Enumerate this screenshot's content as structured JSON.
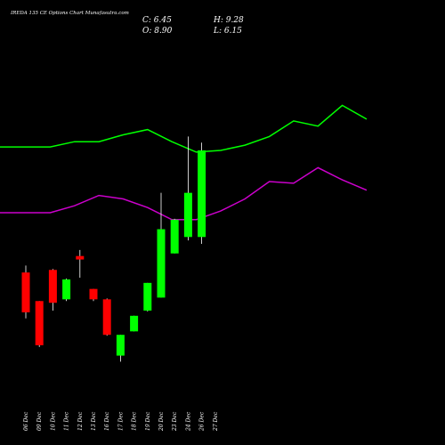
{
  "header": {
    "title": "IREDA 135 CE Options Chart Munafasutra.com",
    "c_label": "C: 6.45",
    "o_label": "O: 8.90",
    "h_label": "H: 9.28",
    "l_label": "L: 6.15"
  },
  "colors": {
    "background": "#000000",
    "up": "#00ff00",
    "down": "#ff0000",
    "upper_line": "#00ff00",
    "lower_line": "#cc00cc",
    "text": "#ffffff"
  },
  "chart_data": {
    "type": "candlestick",
    "categories": [
      "06 Dec",
      "09 Dec",
      "10 Dec",
      "11 Dec",
      "12 Dec",
      "13 Dec",
      "16 Dec",
      "17 Dec",
      "18 Dec",
      "19 Dec",
      "20 Dec",
      "23 Dec",
      "24 Dec",
      "26 Dec",
      "27 Dec"
    ],
    "candles": [
      {
        "open": 11.35,
        "close": 9.05,
        "high": 11.75,
        "low": 8.7
      },
      {
        "open": 9.7,
        "close": 7.15,
        "high": 9.7,
        "low": 7.05
      },
      {
        "open": 11.5,
        "close": 9.6,
        "high": 11.55,
        "low": 9.15
      },
      {
        "open": 9.8,
        "close": 10.95,
        "high": 11.0,
        "low": 9.7
      },
      {
        "open": 12.3,
        "close": 12.1,
        "high": 12.65,
        "low": 11.05
      },
      {
        "open": 10.4,
        "close": 9.8,
        "high": 10.4,
        "low": 9.7
      },
      {
        "open": 9.8,
        "close": 7.75,
        "high": 9.85,
        "low": 7.7
      },
      {
        "open": 6.55,
        "close": 7.75,
        "high": 7.75,
        "low": 6.2
      },
      {
        "open": 7.95,
        "close": 8.85,
        "high": 8.85,
        "low": 7.95
      },
      {
        "open": 9.15,
        "close": 10.75,
        "high": 10.75,
        "low": 9.1
      },
      {
        "open": 9.9,
        "close": 13.85,
        "high": 15.95,
        "low": 9.9
      },
      {
        "open": 12.45,
        "close": 14.4,
        "high": 14.45,
        "low": 12.45
      },
      {
        "open": 13.4,
        "close": 15.95,
        "high": 19.2,
        "low": 13.2
      },
      {
        "open": 13.4,
        "close": 18.4,
        "high": 18.85,
        "low": 13.0
      },
      {
        "open": null,
        "close": null,
        "high": null,
        "low": null
      }
    ],
    "upper_band": [
      18.6,
      18.6,
      18.9,
      18.9,
      19.3,
      19.6,
      18.9,
      18.3,
      18.4,
      18.7,
      19.2,
      20.1,
      19.8,
      21.0,
      20.2
    ],
    "lower_band": [
      14.8,
      14.8,
      15.2,
      15.8,
      15.6,
      15.1,
      14.4,
      14.4,
      14.9,
      15.6,
      16.6,
      16.5,
      17.4,
      16.7,
      16.1
    ],
    "ylim": [
      5.5,
      24.0
    ]
  }
}
